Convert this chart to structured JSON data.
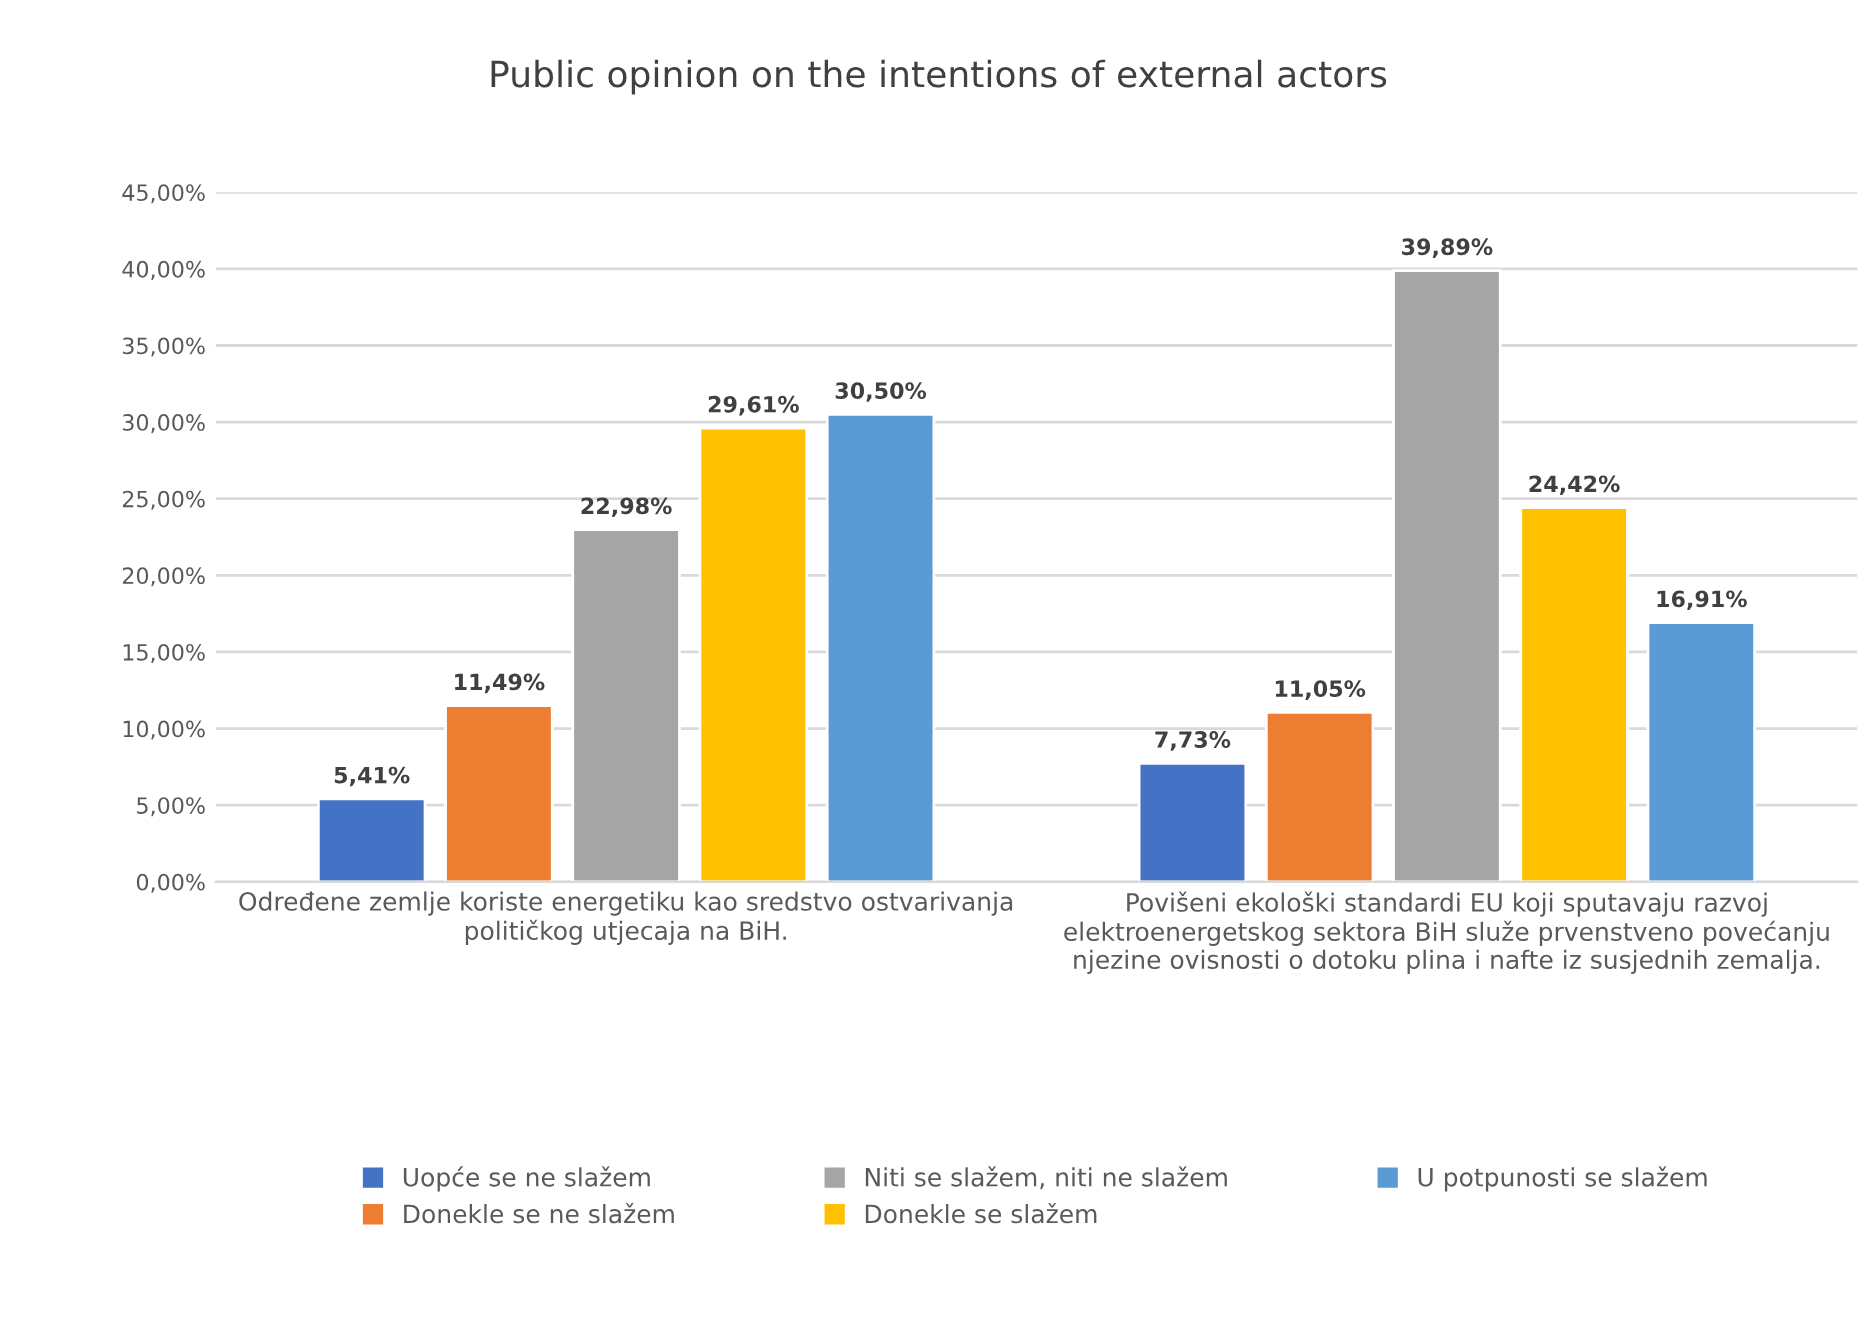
{
  "chart_data": {
    "type": "bar",
    "title": "Public opinion on the intentions of external actors",
    "categories": [
      "Određene zemlje koriste energetiku kao sredstvo ostvarivanja\npolitičkog utjecaja na BiH.",
      "Povišeni ekološki standardi EU koji sputavaju razvoj\nelektroenergetskog sektora BiH služe prvenstveno povećanju\nnjezine ovisnosti o dotoku plina i nafte iz susjednih zemalja."
    ],
    "series": [
      {
        "name": "Uopće se ne slažem",
        "color": "#4472c4",
        "values": [
          5.41,
          7.73
        ],
        "value_labels": [
          "5,41%",
          "7,73%"
        ]
      },
      {
        "name": "Donekle se ne slažem",
        "color": "#ed7d31",
        "values": [
          11.49,
          11.05
        ],
        "value_labels": [
          "11,49%",
          "11,05%"
        ]
      },
      {
        "name": "Niti se slažem, niti ne slažem",
        "color": "#a5a5a5",
        "values": [
          22.98,
          39.89
        ],
        "value_labels": [
          "22,98%",
          "39,89%"
        ]
      },
      {
        "name": "Donekle se slažem",
        "color": "#ffc000",
        "values": [
          29.61,
          24.42
        ],
        "value_labels": [
          "29,61%",
          "24,42%"
        ]
      },
      {
        "name": "U potpunosti se slažem",
        "color": "#5b9bd5",
        "values": [
          30.5,
          16.91
        ],
        "value_labels": [
          "30,50%",
          "16,91%"
        ]
      }
    ],
    "ylim": [
      0,
      45
    ],
    "yticks": [
      {
        "value": 0,
        "label": "0,00%"
      },
      {
        "value": 5,
        "label": "5,00%"
      },
      {
        "value": 10,
        "label": "10,00%"
      },
      {
        "value": 15,
        "label": "15,00%"
      },
      {
        "value": 20,
        "label": "20,00%"
      },
      {
        "value": 25,
        "label": "25,00%"
      },
      {
        "value": 30,
        "label": "30,00%"
      },
      {
        "value": 35,
        "label": "35,00%"
      },
      {
        "value": 40,
        "label": "40,00%"
      },
      {
        "value": 45,
        "label": "45,00%"
      }
    ],
    "grid": "y",
    "legend": "bottom"
  }
}
